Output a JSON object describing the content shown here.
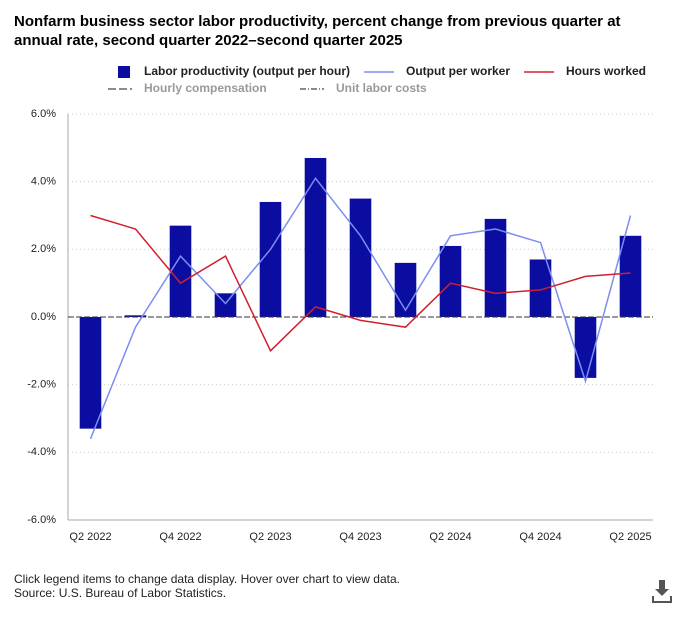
{
  "chart_data": {
    "type": "bar",
    "title": "Nonfarm business sector labor productivity, percent change from previous quarter at annual rate, second quarter 2022–second quarter 2025",
    "categories": [
      "Q2 2022",
      null,
      "Q4 2022",
      null,
      "Q2 2023",
      null,
      "Q4 2023",
      null,
      "Q2 2024",
      null,
      "Q4 2024",
      null,
      "Q2 2025"
    ],
    "series": [
      {
        "name": "Labor productivity (output per hour)",
        "type": "bar",
        "color": "#0b0ca0",
        "values": [
          -3.3,
          0.05,
          2.7,
          0.7,
          3.4,
          4.7,
          3.5,
          1.6,
          2.1,
          2.9,
          1.7,
          -1.8,
          2.4
        ]
      },
      {
        "name": "Output per worker",
        "type": "line",
        "color": "#7b8ef2",
        "values": [
          -3.6,
          -0.3,
          1.8,
          0.4,
          2.0,
          4.1,
          2.4,
          0.2,
          2.4,
          2.6,
          2.2,
          -1.9,
          3.0
        ]
      },
      {
        "name": "Hours worked",
        "type": "line",
        "color": "#d0202e",
        "values": [
          3.0,
          2.6,
          1.0,
          1.8,
          -1.0,
          0.3,
          -0.1,
          -0.3,
          1.0,
          0.7,
          0.8,
          1.2,
          1.3
        ]
      }
    ],
    "hidden_legend": [
      "Hourly compensation",
      "Unit labor costs"
    ],
    "ylim": [
      -6,
      6
    ],
    "yticks": [
      {
        "value": -6,
        "label": "-6.0%"
      },
      {
        "value": -4,
        "label": "-4.0%"
      },
      {
        "value": -2,
        "label": "-2.0%"
      },
      {
        "value": 0,
        "label": "0.0%"
      },
      {
        "value": 2,
        "label": "2.0%"
      },
      {
        "value": 4,
        "label": "4.0%"
      },
      {
        "value": 6,
        "label": "6.0%"
      }
    ],
    "grid": true,
    "notes": [
      "Click legend items to change data display. Hover over chart to view data.",
      "Source: U.S. Bureau of Labor Statistics."
    ]
  }
}
